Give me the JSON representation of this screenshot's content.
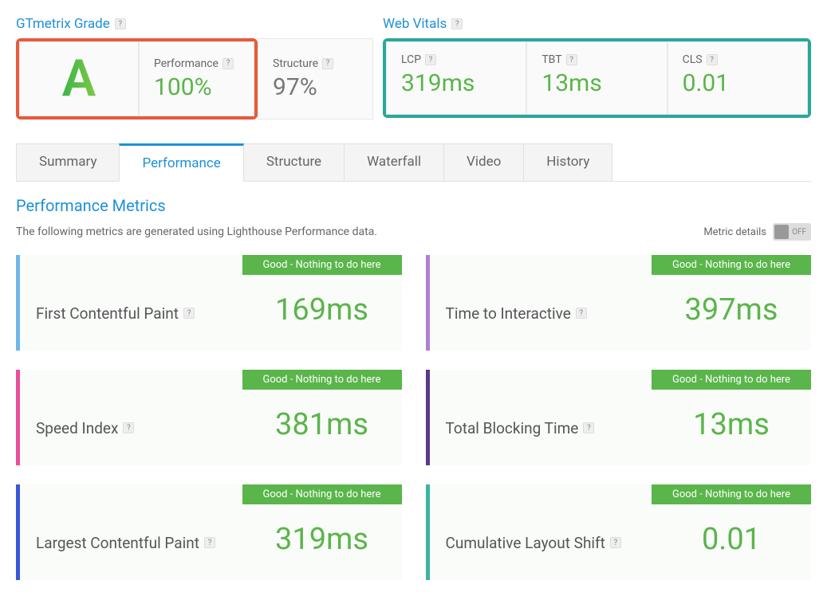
{
  "colors": {
    "link_blue": "#1e90d6",
    "green": "#5ab54a",
    "gray_text": "#666666",
    "highlight_red": "#e85a3a",
    "highlight_teal": "#2aa79b",
    "status_green": "#5ab54a"
  },
  "grade_section": {
    "title": "GTmetrix Grade",
    "letter": "A",
    "performance": {
      "label": "Performance",
      "value": "100%"
    },
    "structure": {
      "label": "Structure",
      "value": "97%"
    }
  },
  "vitals_section": {
    "title": "Web Vitals",
    "items": [
      {
        "label": "LCP",
        "value": "319ms"
      },
      {
        "label": "TBT",
        "value": "13ms"
      },
      {
        "label": "CLS",
        "value": "0.01"
      }
    ]
  },
  "tabs": {
    "items": [
      "Summary",
      "Performance",
      "Structure",
      "Waterfall",
      "Video",
      "History"
    ],
    "active": "Performance"
  },
  "metrics_section": {
    "title": "Performance Metrics",
    "subtitle": "The following metrics are generated using Lighthouse Performance data.",
    "toggle_label": "Metric details",
    "toggle_state": "OFF"
  },
  "metric_cards": [
    {
      "name": "First Contentful Paint",
      "value": "169ms",
      "status": "Good - Nothing to do here",
      "accent": "accent-lightblue"
    },
    {
      "name": "Time to Interactive",
      "value": "397ms",
      "status": "Good - Nothing to do here",
      "accent": "accent-lavender"
    },
    {
      "name": "Speed Index",
      "value": "381ms",
      "status": "Good - Nothing to do here",
      "accent": "accent-pink"
    },
    {
      "name": "Total Blocking Time",
      "value": "13ms",
      "status": "Good - Nothing to do here",
      "accent": "accent-purple"
    },
    {
      "name": "Largest Contentful Paint",
      "value": "319ms",
      "status": "Good - Nothing to do here",
      "accent": "accent-blue"
    },
    {
      "name": "Cumulative Layout Shift",
      "value": "0.01",
      "status": "Good - Nothing to do here",
      "accent": "accent-teal"
    }
  ]
}
